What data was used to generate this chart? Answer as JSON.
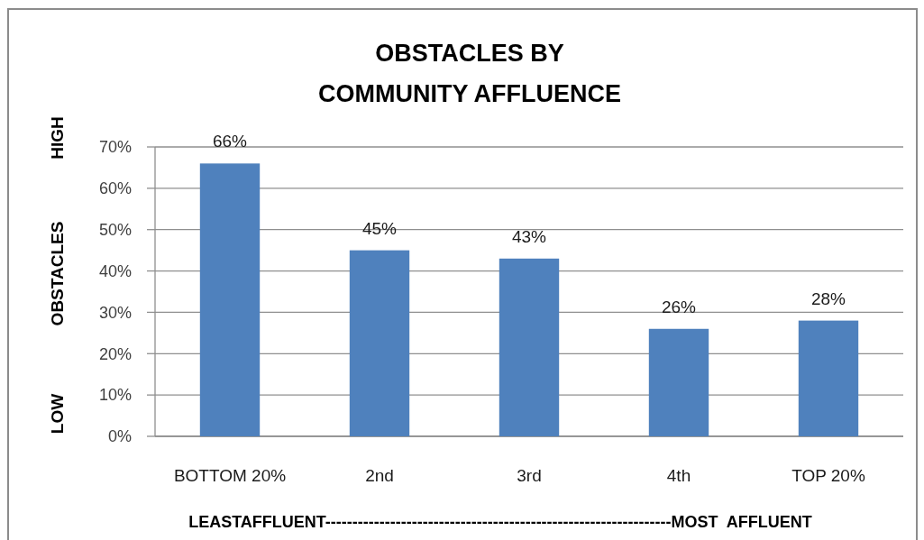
{
  "chart_data": {
    "type": "bar",
    "title": "OBSTACLES BY\nCOMMUNITY AFFLUENCE",
    "ylabel": "OBSTACLES",
    "annotations": [
      "HIGH",
      "LOW"
    ],
    "xlabel": "LEASTAFFLUENT----------------------------------------------------------------MOST  AFFLUENT",
    "categories": [
      "BOTTOM 20%",
      "2nd",
      "3rd",
      "4th",
      "TOP 20%"
    ],
    "values": [
      66,
      45,
      43,
      26,
      28
    ],
    "color": "#4f81bd",
    "value_labels": [
      "66%",
      "45%",
      "43%",
      "26%",
      "28%"
    ],
    "ylim": [
      0,
      70
    ],
    "yticks": [
      {
        "value": 0,
        "label": "0%"
      },
      {
        "value": 10,
        "label": "10%"
      },
      {
        "value": 20,
        "label": "20%"
      },
      {
        "value": 30,
        "label": "30%"
      },
      {
        "value": 40,
        "label": "40%"
      },
      {
        "value": 50,
        "label": "50%"
      },
      {
        "value": 60,
        "label": "60%"
      },
      {
        "value": 70,
        "label": "70%"
      }
    ],
    "grid": "y"
  }
}
